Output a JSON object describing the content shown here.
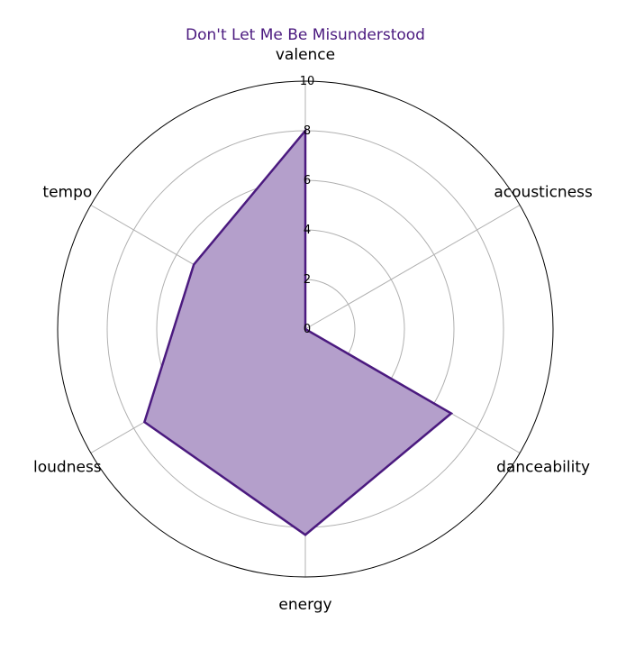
{
  "chart_data": {
    "type": "radar",
    "title": "Don't Let Me Be Misunderstood",
    "axes": [
      "valence",
      "acousticness",
      "danceability",
      "energy",
      "loudness",
      "tempo"
    ],
    "series": [
      {
        "values": [
          8.0,
          0.0,
          6.8,
          8.3,
          7.5,
          5.2
        ]
      }
    ],
    "rlim": [
      0,
      10
    ],
    "rticks": [
      0,
      2,
      4,
      6,
      8,
      10
    ],
    "grid": true,
    "colors": {
      "title": "#4b1a7f",
      "line": "#4b1a7f",
      "fill": "#b49fcb",
      "grid": "#b0b0b0",
      "frame": "#000000"
    }
  }
}
